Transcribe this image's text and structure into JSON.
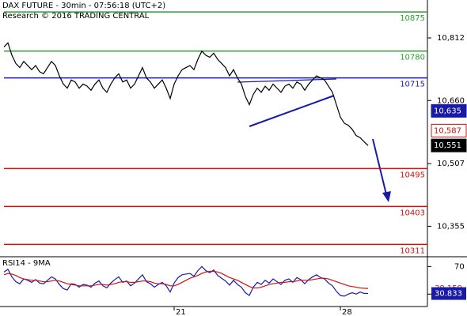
{
  "chart_data": {
    "type": "line",
    "title": "DAX FUTURE - 30min - 07:56:18 (UTC+2)",
    "subtitle": "Research © 2016 TRADING CENTRAL",
    "categories": [
      null,
      null,
      null,
      null,
      null,
      null,
      null,
      null,
      null,
      null,
      null,
      null,
      null,
      null,
      null,
      null,
      null,
      null,
      null,
      null,
      null,
      null,
      null,
      null,
      null,
      null,
      null,
      null,
      null,
      null,
      null,
      null,
      null,
      null,
      null,
      null,
      null,
      null,
      null,
      null,
      null,
      null,
      null,
      "21",
      null,
      null,
      null,
      null,
      null,
      null,
      null,
      null,
      null,
      null,
      null,
      null,
      null,
      null,
      null,
      null,
      null,
      null,
      null,
      null,
      null,
      null,
      null,
      null,
      null,
      null,
      null,
      null,
      null,
      null,
      null,
      null,
      null,
      null,
      null,
      null,
      null,
      null,
      null,
      null,
      null,
      "28",
      null,
      null,
      null,
      null,
      null,
      null,
      null
    ],
    "series": [
      {
        "name": "DAX FUTURE",
        "color": "#000000",
        "values": [
          10790,
          10800,
          10770,
          10750,
          10740,
          10755,
          10745,
          10735,
          10745,
          10730,
          10725,
          10740,
          10755,
          10745,
          10720,
          10700,
          10690,
          10710,
          10705,
          10690,
          10700,
          10695,
          10685,
          10700,
          10710,
          10690,
          10680,
          10700,
          10715,
          10725,
          10705,
          10710,
          10690,
          10700,
          10720,
          10740,
          10715,
          10705,
          10690,
          10700,
          10710,
          10690,
          10665,
          10700,
          10720,
          10735,
          10740,
          10745,
          10735,
          10760,
          10780,
          10770,
          10765,
          10775,
          10760,
          10750,
          10740,
          10720,
          10735,
          10715,
          10700,
          10670,
          10650,
          10675,
          10690,
          10680,
          10695,
          10685,
          10700,
          10690,
          10680,
          10695,
          10700,
          10690,
          10705,
          10700,
          10685,
          10700,
          10710,
          10720,
          10715,
          10710,
          10695,
          10680,
          10650,
          10620,
          10605,
          10600,
          10590,
          10575,
          10570,
          10560,
          10551
        ]
      }
    ],
    "ylim": [
      10281,
      10904
    ],
    "yticks": [
      {
        "value": 10812,
        "label": "10,812"
      },
      {
        "value": 10660,
        "label": "10,660"
      },
      {
        "value": 10507,
        "label": "10,507"
      },
      {
        "value": 10355,
        "label": "10,355"
      }
    ],
    "levels": [
      {
        "value": 10875,
        "color": "#2e9a2e"
      },
      {
        "value": 10780,
        "color": "#2e9a2e"
      },
      {
        "value": 10715,
        "color": "#1a1aa8"
      },
      {
        "value": 10495,
        "color": "#d01010"
      },
      {
        "value": 10403,
        "color": "#d01010"
      },
      {
        "value": 10311,
        "color": "#d01010"
      }
    ],
    "price_tags": [
      {
        "value": 10635,
        "label": "10,635",
        "color": "#1a1aa8"
      },
      {
        "value": 10587,
        "label": "10,587",
        "color": "#d01010"
      },
      {
        "value": 10551,
        "label": "10,551",
        "color": "#000000"
      }
    ],
    "rsi": {
      "title": "RSI14 - 9MA",
      "ylim": [
        12,
        83
      ],
      "yticks": [
        70,
        30
      ],
      "series": [
        {
          "name": "RSI14",
          "color": "#1a1aa8",
          "values": [
            62,
            66,
            55,
            48,
            45,
            52,
            50,
            47,
            51,
            46,
            45,
            50,
            55,
            52,
            44,
            38,
            36,
            45,
            44,
            40,
            44,
            43,
            40,
            46,
            49,
            42,
            39,
            46,
            51,
            55,
            47,
            49,
            42,
            46,
            52,
            58,
            48,
            45,
            40,
            44,
            47,
            42,
            33,
            46,
            54,
            58,
            59,
            60,
            56,
            64,
            70,
            64,
            61,
            65,
            57,
            53,
            49,
            43,
            50,
            44,
            40,
            32,
            28,
            40,
            47,
            44,
            50,
            46,
            52,
            48,
            44,
            50,
            52,
            47,
            54,
            51,
            45,
            51,
            55,
            58,
            54,
            52,
            46,
            42,
            34,
            28,
            27,
            30,
            32,
            30,
            33,
            31,
            30.833
          ]
        },
        {
          "name": "9MA",
          "color": "#d01010",
          "values": [
            58,
            60,
            59,
            57,
            54,
            52,
            51,
            50,
            50,
            49,
            48,
            48,
            49,
            50,
            49,
            47,
            45,
            44,
            43,
            42,
            42,
            42,
            42,
            43,
            44,
            44,
            43,
            44,
            45,
            47,
            48,
            48,
            47,
            47,
            48,
            49,
            49,
            48,
            46,
            45,
            45,
            44,
            42,
            42,
            44,
            47,
            50,
            53,
            55,
            57,
            60,
            62,
            63,
            63,
            62,
            60,
            57,
            54,
            52,
            50,
            47,
            44,
            41,
            39,
            39,
            40,
            42,
            44,
            45,
            46,
            47,
            47,
            48,
            48,
            49,
            50,
            50,
            50,
            51,
            52,
            53,
            53,
            52,
            50,
            48,
            46,
            44,
            42,
            41,
            40,
            39,
            38.5,
            38.159
          ]
        }
      ],
      "tags": [
        {
          "value": 38.159,
          "label": "38.159",
          "color": "#d01010"
        },
        {
          "value": 30.833,
          "label": "30.833",
          "color": "#1a1aa8"
        }
      ]
    }
  }
}
